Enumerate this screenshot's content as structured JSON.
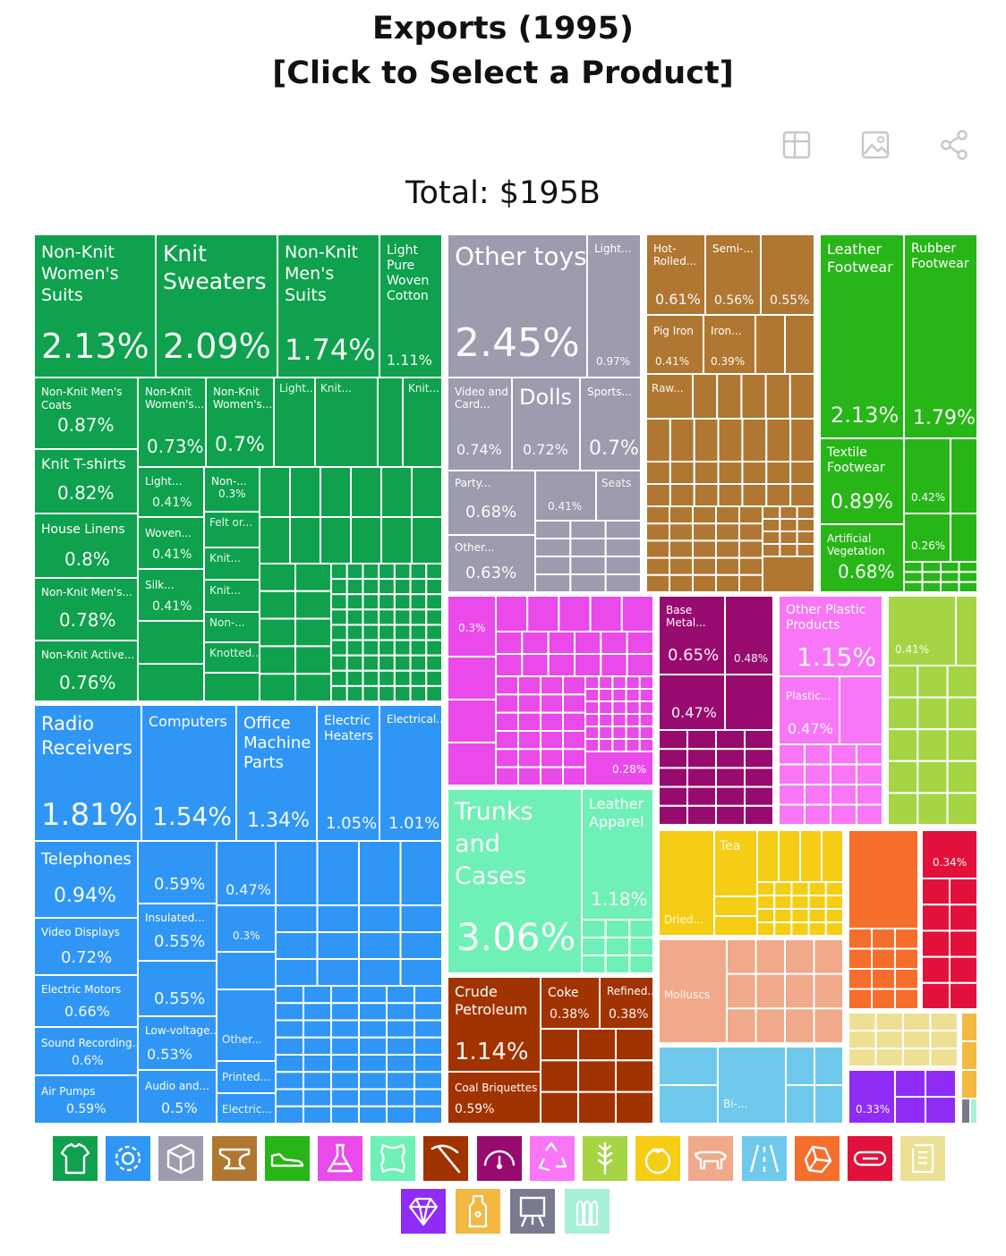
{
  "header": {
    "title": "Exports (1995)",
    "subtitle": "[Click to Select a Product]",
    "total": "Total: $195B"
  },
  "toolbar": [
    {
      "name": "table-view-icon"
    },
    {
      "name": "image-download-icon"
    },
    {
      "name": "share-icon"
    }
  ],
  "colors": {
    "textiles": "#0fa14d",
    "machines": "#3096f5",
    "misc": "#9c9cae",
    "metals": "#b07732",
    "footwear": "#28b518",
    "chemicals": "#e94ae9",
    "animal_hides": "#6ff0b6",
    "mineral": "#a13300",
    "instruments": "#980b6e",
    "plastics": "#f977f7",
    "vegetable": "#a5d445",
    "foodstuffs": "#f5cd14",
    "animal_products": "#f0a98a",
    "transport": "#6ec9ed",
    "stone": "#f56e2c",
    "paper": "#e1113b",
    "wood": "#ede094",
    "precious": "#8f2cf5",
    "weapons": "#7b7b95",
    "arts": "#7a7a8e",
    "animal_veg_fats": "#f2b842",
    "other": "#a8f0d8"
  },
  "legend": [
    {
      "name": "textiles-shirt-icon",
      "color": "#0fa14d"
    },
    {
      "name": "machines-gear-icon",
      "color": "#3096f5"
    },
    {
      "name": "miscellaneous-box-icon",
      "color": "#9c9cae"
    },
    {
      "name": "metals-anvil-icon",
      "color": "#b07732"
    },
    {
      "name": "footwear-shoe-icon",
      "color": "#28b518"
    },
    {
      "name": "chemicals-flask-icon",
      "color": "#e94ae9"
    },
    {
      "name": "animal-hides-icon",
      "color": "#6ff0b6"
    },
    {
      "name": "mineral-products-pickaxe-icon",
      "color": "#a13300"
    },
    {
      "name": "instruments-gauge-icon",
      "color": "#980b6e"
    },
    {
      "name": "plastics-recycle-icon",
      "color": "#f977f7"
    },
    {
      "name": "vegetable-products-wheat-icon",
      "color": "#a5d445"
    },
    {
      "name": "foodstuffs-tomato-icon",
      "color": "#f5cd14"
    },
    {
      "name": "animal-products-cow-icon",
      "color": "#f0a98a"
    },
    {
      "name": "transportation-road-icon",
      "color": "#6ec9ed"
    },
    {
      "name": "stone-and-glass-icon",
      "color": "#f56e2c"
    },
    {
      "name": "paper-goods-icon",
      "color": "#e1113b"
    },
    {
      "name": "wood-products-scroll-icon",
      "color": "#ede094"
    },
    {
      "name": "precious-metals-diamond-icon",
      "color": "#8f2cf5"
    },
    {
      "name": "animal-veg-fats-bottle-icon",
      "color": "#f2b842"
    },
    {
      "name": "arts-easel-icon",
      "color": "#7a7a8e"
    },
    {
      "name": "weapons-ammo-icon",
      "color": "#a8f0d8"
    }
  ],
  "chart_data": {
    "type": "treemap",
    "title": "Exports (1995)",
    "subtitle": "[Click to Select a Product]",
    "total": "Total: $195B",
    "unit": "% of total exports",
    "labeled_items": [
      {
        "name": "Non-Knit Women's Suits",
        "value": 2.13,
        "group": "textiles",
        "shown_name": "Non-Knit Women's Suits",
        "shown_value": "2.13%"
      },
      {
        "name": "Knit Sweaters",
        "value": 2.09,
        "group": "textiles",
        "shown_name": "Knit Sweaters",
        "shown_value": "2.09%"
      },
      {
        "name": "Non-Knit Men's Suits",
        "value": 1.74,
        "group": "textiles",
        "shown_name": "Non-Knit Men's Suits",
        "shown_value": "1.74%"
      },
      {
        "name": "Light Pure Woven Cotton",
        "value": 1.11,
        "group": "textiles",
        "shown_name": "Light Pure Woven Cotton",
        "shown_value": "1.11%"
      },
      {
        "name": "Non-Knit Men's Coats",
        "value": 0.87,
        "group": "textiles",
        "shown_name": "Non-Knit Men's Coats",
        "shown_value": "0.87%"
      },
      {
        "name": "Non-Knit Women's...",
        "value": 0.73,
        "group": "textiles",
        "shown_name": "Non-Knit Women's...",
        "shown_value": "0.73%"
      },
      {
        "name": "Non-Knit Women's...",
        "value": 0.7,
        "group": "textiles",
        "shown_name": "Non-Knit Women's...",
        "shown_value": "0.7%"
      },
      {
        "name": "Knit T-shirts",
        "value": 0.82,
        "group": "textiles",
        "shown_name": "Knit T-shirts",
        "shown_value": "0.82%"
      },
      {
        "name": "House Linens",
        "value": 0.8,
        "group": "textiles",
        "shown_name": "House Linens",
        "shown_value": "0.8%"
      },
      {
        "name": "Non-Knit Men's...",
        "value": 0.78,
        "group": "textiles",
        "shown_name": "Non-Knit Men's...",
        "shown_value": "0.78%"
      },
      {
        "name": "Non-Knit Active...",
        "value": 0.76,
        "group": "textiles",
        "shown_name": "Non-Knit Active...",
        "shown_value": "0.76%"
      },
      {
        "name": "Light...",
        "value": 0.41,
        "group": "textiles",
        "shown_name": "Light...",
        "shown_value": "0.41%"
      },
      {
        "name": "Non-...",
        "value": 0.3,
        "group": "textiles",
        "shown_name": "Non-...",
        "shown_value": "0.3%"
      },
      {
        "name": "Woven...",
        "value": 0.41,
        "group": "textiles",
        "shown_name": "Woven...",
        "shown_value": "0.41%"
      },
      {
        "name": "Silk...",
        "value": 0.41,
        "group": "textiles",
        "shown_name": "Silk...",
        "shown_value": "0.41%"
      },
      {
        "name": "Radio Receivers",
        "value": 1.81,
        "group": "machines",
        "shown_name": "Radio Receivers",
        "shown_value": "1.81%"
      },
      {
        "name": "Computers",
        "value": 1.54,
        "group": "machines",
        "shown_name": "Computers",
        "shown_value": "1.54%"
      },
      {
        "name": "Office Machine Parts",
        "value": 1.34,
        "group": "machines",
        "shown_name": "Office Machine Parts",
        "shown_value": "1.34%"
      },
      {
        "name": "Electric Heaters",
        "value": 1.05,
        "group": "machines",
        "shown_name": "Electric Heaters",
        "shown_value": "1.05%"
      },
      {
        "name": "Electrical...",
        "value": 1.01,
        "group": "machines",
        "shown_name": "Electrical...",
        "shown_value": "1.01%"
      },
      {
        "name": "Telephones",
        "value": 0.94,
        "group": "machines",
        "shown_name": "Telephones",
        "shown_value": "0.94%"
      },
      {
        "name": "Video Displays",
        "value": 0.72,
        "group": "machines",
        "shown_name": "Video Displays",
        "shown_value": "0.72%"
      },
      {
        "name": "Electric Motors",
        "value": 0.66,
        "group": "machines",
        "shown_name": "Electric Motors",
        "shown_value": "0.66%"
      },
      {
        "name": "Sound Recording...",
        "value": 0.6,
        "group": "machines",
        "shown_name": "Sound Recording...",
        "shown_value": "0.6%"
      },
      {
        "name": "Air Pumps",
        "value": 0.59,
        "group": "machines",
        "shown_name": "Air Pumps",
        "shown_value": "0.59%"
      },
      {
        "name": "(unnamed)",
        "value": 0.59,
        "group": "machines",
        "shown_name": "",
        "shown_value": "0.59%"
      },
      {
        "name": "(unnamed)",
        "value": 0.47,
        "group": "machines",
        "shown_name": "",
        "shown_value": "0.47%"
      },
      {
        "name": "Insulated...",
        "value": 0.55,
        "group": "machines",
        "shown_name": "Insulated...",
        "shown_value": "0.55%"
      },
      {
        "name": "(unnamed)",
        "value": 0.3,
        "group": "machines",
        "shown_name": "",
        "shown_value": "0.3%"
      },
      {
        "name": "(unnamed)",
        "value": 0.55,
        "group": "machines",
        "shown_name": "",
        "shown_value": "0.55%"
      },
      {
        "name": "Low-voltage...",
        "value": 0.53,
        "group": "machines",
        "shown_name": "Low-voltage...",
        "shown_value": "0.53%"
      },
      {
        "name": "Audio and...",
        "value": 0.5,
        "group": "machines",
        "shown_name": "Audio and...",
        "shown_value": "0.5%"
      },
      {
        "name": "Other toys",
        "value": 2.45,
        "group": "misc",
        "shown_name": "Other toys",
        "shown_value": "2.45%"
      },
      {
        "name": "Light...",
        "value": 0.97,
        "group": "misc",
        "shown_name": "Light...",
        "shown_value": "0.97%"
      },
      {
        "name": "Video and Card...",
        "value": 0.74,
        "group": "misc",
        "shown_name": "Video and Card...",
        "shown_value": "0.74%"
      },
      {
        "name": "Dolls",
        "value": 0.72,
        "group": "misc",
        "shown_name": "Dolls",
        "shown_value": "0.72%"
      },
      {
        "name": "Sports...",
        "value": 0.7,
        "group": "misc",
        "shown_name": "Sports...",
        "shown_value": "0.7%"
      },
      {
        "name": "Party...",
        "value": 0.68,
        "group": "misc",
        "shown_name": "Party...",
        "shown_value": "0.68%"
      },
      {
        "name": "(unnamed)",
        "value": 0.41,
        "group": "misc",
        "shown_name": "",
        "shown_value": "0.41%"
      },
      {
        "name": "Other...",
        "value": 0.63,
        "group": "misc",
        "shown_name": "Other...",
        "shown_value": "0.63%"
      },
      {
        "name": "Hot-Rolled...",
        "value": 0.61,
        "group": "metals",
        "shown_name": "Hot-Rolled...",
        "shown_value": "0.61%"
      },
      {
        "name": "Semi-...",
        "value": 0.56,
        "group": "metals",
        "shown_name": "Semi-...",
        "shown_value": "0.56%"
      },
      {
        "name": "(unnamed)",
        "value": 0.55,
        "group": "metals",
        "shown_name": "",
        "shown_value": "0.55%"
      },
      {
        "name": "Pig Iron",
        "value": 0.41,
        "group": "metals",
        "shown_name": "Pig Iron",
        "shown_value": "0.41%"
      },
      {
        "name": "Iron...",
        "value": 0.39,
        "group": "metals",
        "shown_name": "Iron...",
        "shown_value": "0.39%"
      },
      {
        "name": "Leather Footwear",
        "value": 2.13,
        "group": "footwear",
        "shown_name": "Leather Footwear",
        "shown_value": "2.13%"
      },
      {
        "name": "Rubber Footwear",
        "value": 1.79,
        "group": "footwear",
        "shown_name": "Rubber Footwear",
        "shown_value": "1.79%"
      },
      {
        "name": "Textile Footwear",
        "value": 0.89,
        "group": "footwear",
        "shown_name": "Textile Footwear",
        "shown_value": "0.89%"
      },
      {
        "name": "(unnamed)",
        "value": 0.42,
        "group": "footwear",
        "shown_name": "",
        "shown_value": "0.42%"
      },
      {
        "name": "Artificial Vegetation",
        "value": 0.68,
        "group": "footwear",
        "shown_name": "Artificial Vegetation",
        "shown_value": "0.68%"
      },
      {
        "name": "(unnamed)",
        "value": 0.26,
        "group": "footwear",
        "shown_name": "",
        "shown_value": "0.26%"
      },
      {
        "name": "(unnamed)",
        "value": 0.3,
        "group": "chemicals",
        "shown_name": "",
        "shown_value": "0.3%"
      },
      {
        "name": "(unnamed)",
        "value": 0.28,
        "group": "chemicals",
        "shown_name": "",
        "shown_value": "0.28%"
      },
      {
        "name": "Base Metal...",
        "value": 0.65,
        "group": "instruments",
        "shown_name": "Base Metal...",
        "shown_value": "0.65%"
      },
      {
        "name": "(unnamed)",
        "value": 0.48,
        "group": "instruments",
        "shown_name": "",
        "shown_value": "0.48%"
      },
      {
        "name": "(unnamed)",
        "value": 0.47,
        "group": "instruments",
        "shown_name": "",
        "shown_value": "0.47%"
      },
      {
        "name": "Other Plastic Products",
        "value": 1.15,
        "group": "plastics",
        "shown_name": "Other Plastic Products",
        "shown_value": "1.15%"
      },
      {
        "name": "Plastic...",
        "value": 0.47,
        "group": "plastics",
        "shown_name": "Plastic...",
        "shown_value": "0.47%"
      },
      {
        "name": "(unnamed)",
        "value": 0.41,
        "group": "vegetable",
        "shown_name": "",
        "shown_value": "0.41%"
      },
      {
        "name": "Trunks and Cases",
        "value": 3.06,
        "group": "animal_hides",
        "shown_name": "Trunks and Cases",
        "shown_value": "3.06%"
      },
      {
        "name": "Leather Apparel",
        "value": 1.18,
        "group": "animal_hides",
        "shown_name": "Leather Apparel",
        "shown_value": "1.18%"
      },
      {
        "name": "Crude Petroleum",
        "value": 1.14,
        "group": "mineral",
        "shown_name": "Crude Petroleum",
        "shown_value": "1.14%"
      },
      {
        "name": "Coke",
        "value": 0.38,
        "group": "mineral",
        "shown_name": "Coke",
        "shown_value": "0.38%"
      },
      {
        "name": "Refined...",
        "value": 0.38,
        "group": "mineral",
        "shown_name": "Refined...",
        "shown_value": "0.38%"
      },
      {
        "name": "Coal Briquettes",
        "value": 0.59,
        "group": "mineral",
        "shown_name": "Coal Briquettes",
        "shown_value": "0.59%"
      },
      {
        "name": "(unnamed)",
        "value": 0.34,
        "group": "paper",
        "shown_name": "",
        "shown_value": "0.34%"
      },
      {
        "name": "(unnamed)",
        "value": 0.33,
        "group": "precious",
        "shown_name": "",
        "shown_value": "0.33%"
      }
    ],
    "unlabeled_shown_names": [
      {
        "group": "textiles",
        "names": [
          "Light...",
          "Knit...",
          "Knit...",
          "Felt or...",
          "Knit...",
          "Knit...",
          "Non-...",
          "Knotted..."
        ]
      },
      {
        "group": "misc",
        "names": [
          "Seats"
        ]
      },
      {
        "group": "metals",
        "names": [
          "Raw..."
        ]
      },
      {
        "group": "foodstuffs",
        "names": [
          "Tea",
          "Dried..."
        ]
      },
      {
        "group": "animal_products",
        "names": [
          "Molluscs"
        ]
      },
      {
        "group": "transport",
        "names": [
          "Bi-..."
        ]
      },
      {
        "group": "machines",
        "names": [
          "Other...",
          "Printed...",
          "Electric..."
        ]
      }
    ]
  }
}
